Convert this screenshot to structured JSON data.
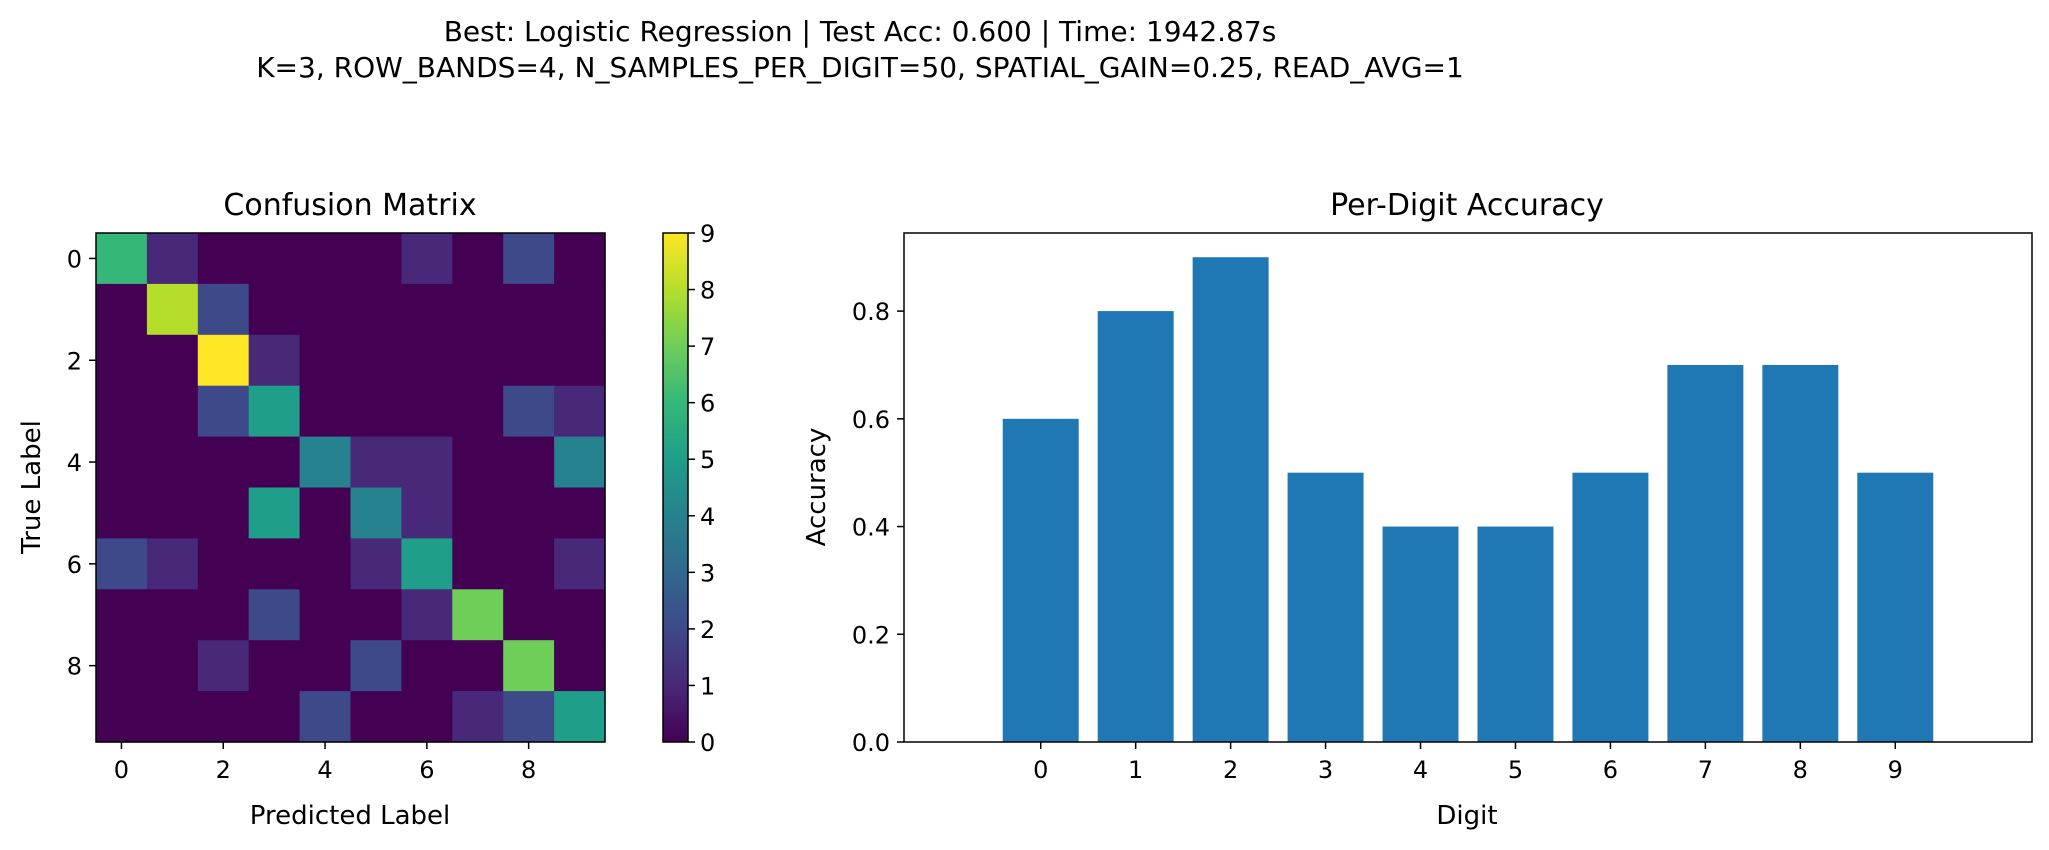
{
  "figure": {
    "suptitle_line1": "Best: Logistic Regression  |  Test Acc: 0.600  |  Time: 1942.87s",
    "suptitle_line2": "K=3, ROW_BANDS=4, N_SAMPLES_PER_DIGIT=50, SPATIAL_GAIN=0.25, READ_AVG=1"
  },
  "chart_data": [
    {
      "type": "heatmap",
      "title": "Confusion Matrix",
      "xlabel": "Predicted Label",
      "ylabel": "True Label",
      "x_ticks": [
        0,
        2,
        4,
        6,
        8
      ],
      "y_ticks": [
        0,
        2,
        4,
        6,
        8
      ],
      "colormap": "viridis",
      "colorbar_range": [
        0,
        9
      ],
      "colorbar_ticks": [
        0,
        1,
        2,
        3,
        4,
        5,
        6,
        7,
        8,
        9
      ],
      "matrix": [
        [
          6,
          1,
          0,
          0,
          0,
          0,
          1,
          0,
          2,
          0
        ],
        [
          0,
          8,
          2,
          0,
          0,
          0,
          0,
          0,
          0,
          0
        ],
        [
          0,
          0,
          9,
          1,
          0,
          0,
          0,
          0,
          0,
          0
        ],
        [
          0,
          0,
          2,
          5,
          0,
          0,
          0,
          0,
          2,
          1
        ],
        [
          0,
          0,
          0,
          0,
          4,
          1,
          1,
          0,
          0,
          4
        ],
        [
          0,
          0,
          0,
          5,
          0,
          4,
          1,
          0,
          0,
          0
        ],
        [
          2,
          1,
          0,
          0,
          0,
          1,
          5,
          0,
          0,
          1
        ],
        [
          0,
          0,
          0,
          2,
          0,
          0,
          1,
          7,
          0,
          0
        ],
        [
          0,
          0,
          1,
          0,
          0,
          2,
          0,
          0,
          7,
          0
        ],
        [
          0,
          0,
          0,
          0,
          2,
          0,
          0,
          1,
          2,
          5
        ]
      ]
    },
    {
      "type": "bar",
      "title": "Per-Digit Accuracy",
      "xlabel": "Digit",
      "ylabel": "Accuracy",
      "categories": [
        "0",
        "1",
        "2",
        "3",
        "4",
        "5",
        "6",
        "7",
        "8",
        "9"
      ],
      "values": [
        0.6,
        0.8,
        0.9,
        0.5,
        0.4,
        0.4,
        0.5,
        0.7,
        0.7,
        0.5
      ],
      "ylim": [
        0,
        0.945
      ],
      "y_ticks": [
        "0.0",
        "0.2",
        "0.4",
        "0.6",
        "0.8"
      ],
      "bar_color": "#1f77b4"
    }
  ]
}
